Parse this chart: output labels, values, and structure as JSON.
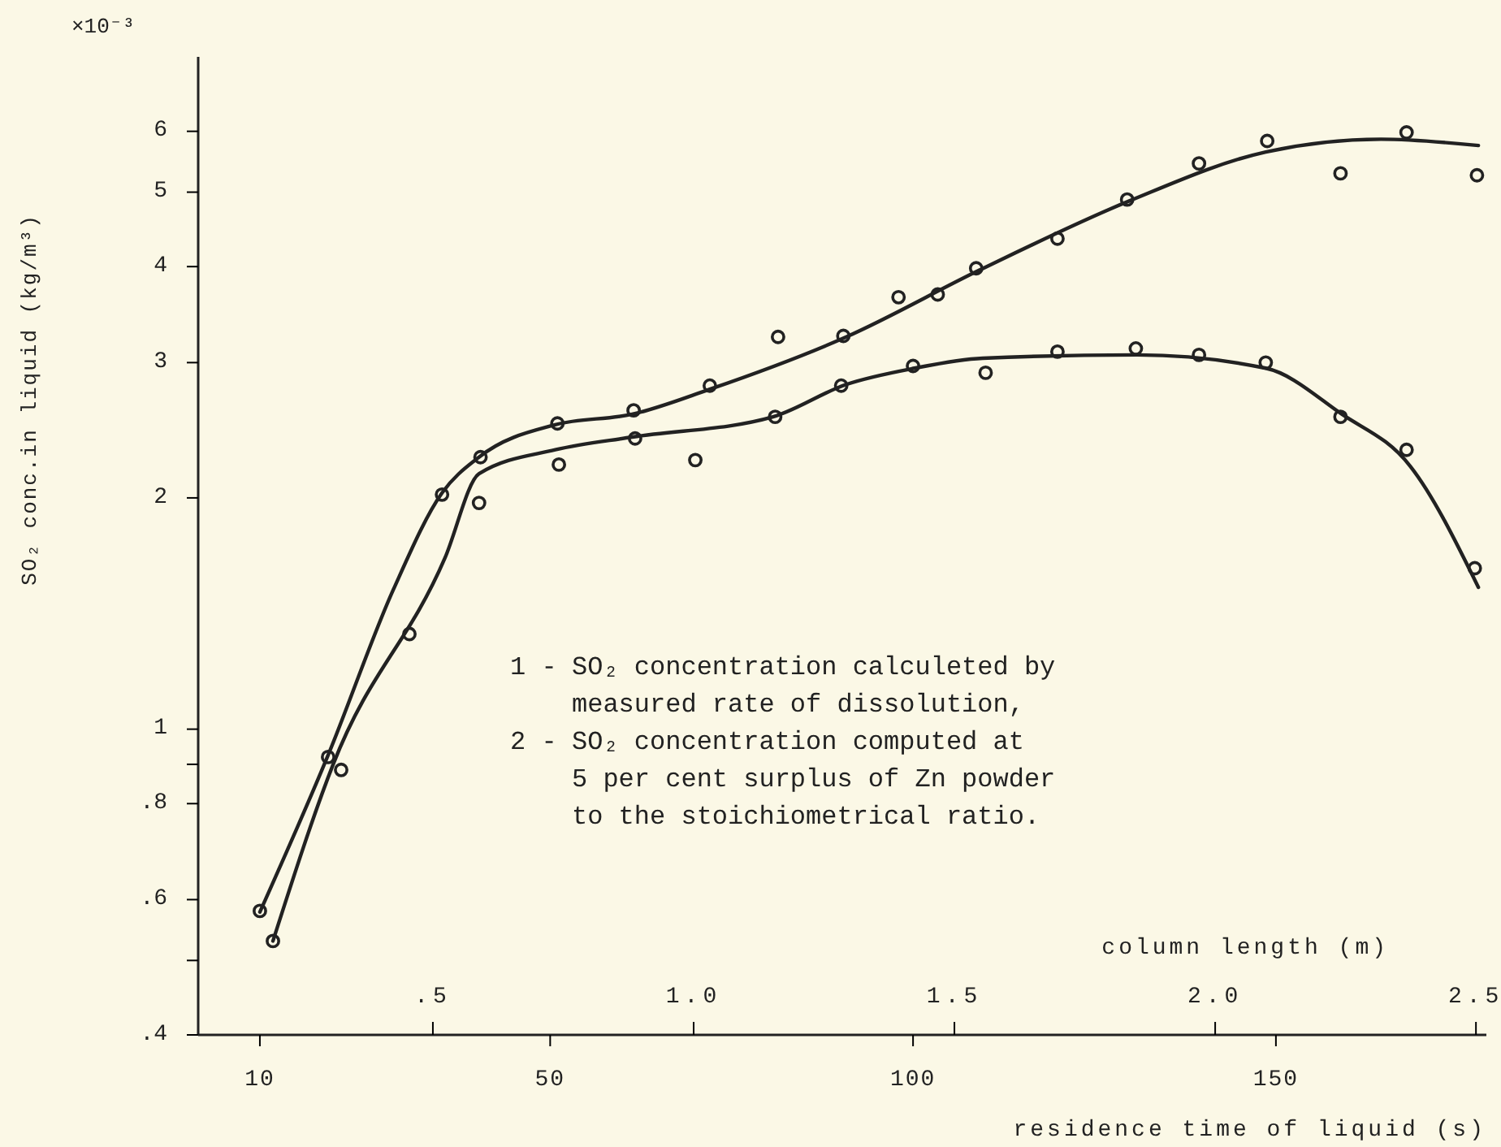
{
  "chart_data": {
    "type": "scatter",
    "xlabel": "residence time of liquid (s)",
    "ylabel": "SO₂ conc.in liquid (kg/m³)",
    "x2label": "column length (m)",
    "annotations": [
      "×10⁻³",
      "1 - SO₂ concentration calculeted by measured rate of dissolution,",
      "2 - SO₂ concentration computed at 5 per cent surplus of Zn powder to the stoichiometrical ratio."
    ],
    "log": "y",
    "xlim": [
      1.5,
      179
    ],
    "xticks": [
      10,
      50,
      100,
      150
    ],
    "x2lim": [
      0.05,
      2.52
    ],
    "x2ticks": [
      {
        "value": 0.5,
        "label": ".5"
      },
      {
        "value": 1.0,
        "label": "1.0"
      },
      {
        "value": 1.5,
        "label": "1.5"
      },
      {
        "value": 2.0,
        "label": "2.0"
      },
      {
        "value": 2.5,
        "label": "2.5"
      }
    ],
    "ylim": [
      0.4,
      7.5
    ],
    "yticks": [
      {
        "value": 0.4,
        "label": ".4"
      },
      {
        "value": 0.5,
        "label": null
      },
      {
        "value": 0.6,
        "label": ".6"
      },
      {
        "value": 0.8,
        "label": ".8"
      },
      {
        "value": 0.9,
        "label": null
      },
      1,
      2,
      3,
      4,
      5,
      6
    ],
    "grid": false,
    "series": [
      {
        "marker": "circle",
        "color": "#222222",
        "x": [
          10,
          19.4,
          35.1,
          40.4,
          51,
          61.5,
          72,
          81.4,
          90.4,
          98,
          103.4,
          108.7,
          119.9,
          129.5,
          139.4,
          148.8,
          158.9,
          168,
          177.7
        ],
        "values": [
          0.58,
          0.92,
          2.02,
          2.26,
          2.5,
          2.6,
          2.8,
          3.24,
          3.25,
          3.65,
          3.68,
          3.98,
          4.35,
          4.89,
          5.45,
          5.83,
          5.29,
          5.98,
          5.26
        ]
      },
      {
        "marker": "circle",
        "color": "#222222",
        "x": [
          11.8,
          21.2,
          30.6,
          40.2,
          51.2,
          61.7,
          70,
          81,
          90.1,
          100,
          110,
          119.9,
          130.7,
          139.4,
          148.6,
          158.9,
          168,
          177.4
        ],
        "values": [
          0.53,
          0.885,
          1.33,
          1.97,
          2.21,
          2.39,
          2.24,
          2.55,
          2.8,
          2.97,
          2.91,
          3.1,
          3.13,
          3.07,
          3.0,
          2.55,
          2.31,
          1.62
        ]
      },
      {
        "type": "line",
        "marker": "none",
        "line_style": "solid",
        "color": "#222222",
        "x": [
          10,
          19.4,
          28.4,
          35.1,
          40.2,
          50.7,
          61.3,
          72,
          90.8,
          109.2,
          129.8,
          148.6,
          164.5,
          177.9
        ],
        "values": [
          0.578,
          0.925,
          1.52,
          2.03,
          2.26,
          2.49,
          2.57,
          2.77,
          3.24,
          3.96,
          4.87,
          5.64,
          5.86,
          5.75
        ]
      },
      {
        "type": "line",
        "marker": "none",
        "line_style": "solid",
        "color": "#222222",
        "x": [
          11.8,
          20.1,
          35.5,
          40.2,
          50.7,
          61.3,
          80.7,
          90.8,
          100.2,
          109.6,
          130.9,
          148.6,
          159.1,
          168.5,
          177.9
        ],
        "values": [
          0.53,
          0.9,
          1.67,
          2.15,
          2.31,
          2.4,
          2.55,
          2.81,
          2.95,
          3.04,
          3.07,
          2.95,
          2.57,
          2.2,
          1.53
        ]
      }
    ]
  }
}
